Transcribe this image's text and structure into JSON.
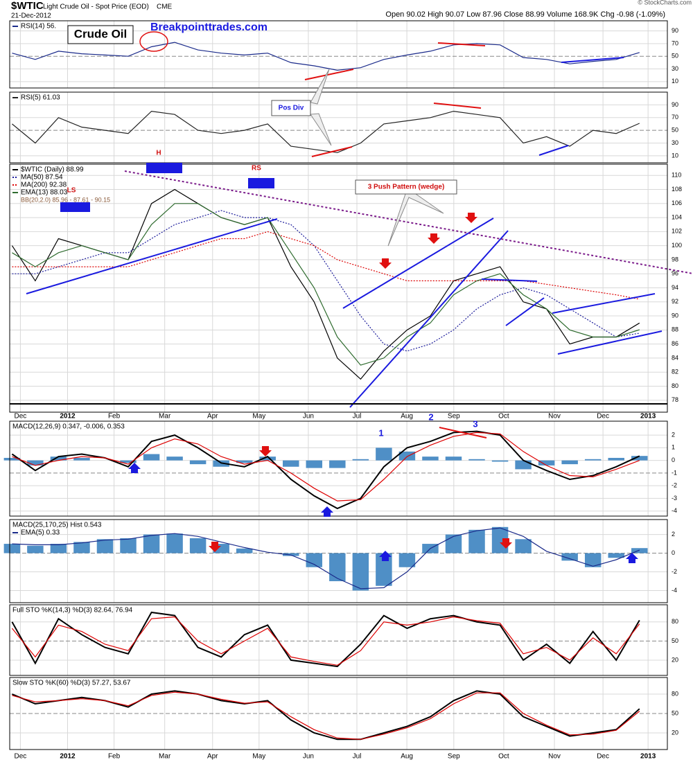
{
  "chart_data": {
    "type": "financial",
    "title": "$WTIC",
    "subtitle": "Light Crude Oil - Spot Price (EOD)",
    "exchange": "CME",
    "date": "21-Dec-2012",
    "quote": "Open 90.02 High 90.07 Low 87.96 Close 88.99 Volume 168.9K Chg -0.98 (-1.09%)",
    "credit": "© StockCharts.com",
    "annotations": {
      "logo": "Crude Oil",
      "site": "Breakpointtrades.com",
      "pos_div": "Pos Div",
      "wedge": "3 Push Pattern (wedge)",
      "h": "H",
      "rs": "RS",
      "ls": "LS",
      "w1": "1",
      "w2": "2",
      "w3": "3"
    },
    "x": [
      0,
      1,
      2,
      3,
      4,
      5,
      6,
      7,
      8,
      9,
      10,
      11,
      12,
      13,
      14,
      15,
      16,
      17,
      18,
      19,
      20,
      21,
      22,
      23,
      24,
      25,
      26,
      27
    ],
    "xlim": [
      -0.1,
      28.2
    ],
    "xticks": [
      {
        "value": 0.36,
        "label": "Dec"
      },
      {
        "value": 2.39,
        "label": "2012"
      },
      {
        "value": 4.39,
        "label": "Feb"
      },
      {
        "value": 6.57,
        "label": "Mar"
      },
      {
        "value": 8.63,
        "label": "Apr"
      },
      {
        "value": 10.63,
        "label": "May"
      },
      {
        "value": 12.75,
        "label": "Jun"
      },
      {
        "value": 14.84,
        "label": "Jul"
      },
      {
        "value": 16.99,
        "label": "Aug"
      },
      {
        "value": 19.01,
        "label": "Sep"
      },
      {
        "value": 21.16,
        "label": "Oct"
      },
      {
        "value": 23.34,
        "label": "Nov"
      },
      {
        "value": 25.43,
        "label": "Dec"
      },
      {
        "value": 27.37,
        "label": "2013"
      }
    ],
    "grid": true,
    "panels": [
      {
        "type": "line",
        "ylim": [
          0,
          106
        ],
        "yticks": [
          10,
          30,
          50,
          70,
          90
        ],
        "series": [
          {
            "name": "RSI(14) 56.",
            "color": "#1a2a8a",
            "values": [
              55,
              45,
              58,
              54,
              52,
              50,
              65,
              72,
              60,
              55,
              52,
              55,
              40,
              35,
              28,
              32,
              45,
              52,
              58,
              68,
              70,
              68,
              48,
              45,
              38,
              42,
              45,
              56
            ]
          }
        ]
      },
      {
        "type": "line",
        "ylim": [
          -1,
          110
        ],
        "yticks": [
          10,
          30,
          50,
          70,
          90
        ],
        "series": [
          {
            "name": "RSI(5) 61.03",
            "color": "#222222",
            "values": [
              60,
              30,
              70,
              55,
              50,
              45,
              80,
              75,
              50,
              45,
              50,
              60,
              25,
              20,
              15,
              30,
              60,
              65,
              70,
              80,
              75,
              70,
              30,
              40,
              25,
              50,
              45,
              61.03
            ]
          }
        ]
      },
      {
        "type": "line",
        "ylim": [
          76.3,
          111.6
        ],
        "yticks": [
          78,
          80,
          82,
          84,
          86,
          88,
          90,
          92,
          94,
          96,
          98,
          100,
          102,
          104,
          106,
          108,
          110
        ],
        "bb_label": "BB(20,2.0) 85.96 - 87.61 - 90.15",
        "series": [
          {
            "name": "$WTIC (Daily) 88.99",
            "color": "#000000",
            "values": [
              100,
              95,
              101,
              100,
              99,
              98,
              106,
              108,
              106,
              104,
              103,
              104,
              97,
              92,
              84,
              81,
              85,
              88,
              90,
              95,
              96,
              97,
              92,
              91,
              86,
              87,
              87,
              88.99
            ]
          },
          {
            "name": "MA(50) 87.54",
            "color": "#1a1a9a",
            "dash": true,
            "values": [
              96,
              96,
              97,
              98,
              99,
              99,
              101,
              103,
              104,
              105,
              104,
              104,
              103,
              100,
              95,
              90,
              86,
              85,
              86,
              88,
              91,
              93,
              94,
              93,
              91,
              89,
              87,
              87.54
            ]
          },
          {
            "name": "MA(200) 92.38",
            "color": "#dd0000",
            "dash": true,
            "values": [
              97,
              97,
              97,
              97,
              97,
              97,
              98,
              99,
              100,
              101,
              101,
              102,
              101,
              100,
              98,
              97,
              96,
              95,
              95,
              95,
              95,
              95,
              95,
              94.5,
              94,
              93.5,
              93,
              92.38
            ]
          },
          {
            "name": "EMA(13) 88.03",
            "color": "#2e6b2e",
            "values": [
              99,
              97,
              99,
              100,
              99,
              98,
              103,
              106,
              106,
              104,
              103,
              104,
              99,
              94,
              87,
              83,
              84,
              87,
              89,
              93,
              95,
              96,
              93,
              91,
              88,
              87,
              87,
              88.03
            ]
          }
        ]
      },
      {
        "type": "line",
        "ylim": [
          -4.4,
          3.1
        ],
        "yticks": [
          -4,
          -3,
          -2,
          -1,
          0,
          1,
          2
        ],
        "label": "MACD(12,26,9) 0.347, -0.006, 0.353",
        "series": [
          {
            "type": "bar",
            "color": "#4f8fc6",
            "values": [
              0.2,
              -0.4,
              0.3,
              0.2,
              0,
              -0.2,
              0.5,
              0.3,
              -0.3,
              -0.5,
              -0.2,
              0.3,
              -0.5,
              -0.6,
              -0.6,
              0.1,
              1,
              0.7,
              0.3,
              0.3,
              0.1,
              -0.1,
              -0.7,
              -0.4,
              -0.3,
              0.1,
              0.2,
              0.353
            ]
          },
          {
            "color": "#000000",
            "width": 2,
            "values": [
              0.5,
              -0.8,
              0.3,
              0.5,
              0.2,
              -0.5,
              1.5,
              2,
              1,
              -0.2,
              -0.5,
              0.3,
              -1.5,
              -2.8,
              -3.8,
              -3,
              -0.5,
              1,
              1.5,
              2.2,
              2.3,
              2,
              0,
              -0.8,
              -1.5,
              -1.2,
              -0.5,
              0.347
            ]
          },
          {
            "color": "#dd0000",
            "values": [
              0.3,
              -0.4,
              0,
              0.3,
              0.2,
              -0.3,
              1,
              1.7,
              1.3,
              0.3,
              -0.3,
              0,
              -1,
              -2.2,
              -3.2,
              -3.1,
              -1.5,
              0.3,
              1.2,
              1.9,
              2.2,
              2.1,
              0.7,
              -0.4,
              -1.2,
              -1.3,
              -0.7,
              -0.006
            ]
          }
        ]
      },
      {
        "type": "line",
        "ylim": [
          -5.3,
          3.6
        ],
        "yticks": [
          -4,
          -2,
          0,
          2
        ],
        "label": "MACD(25,170,25) Hist 0.543",
        "series": [
          {
            "type": "bar",
            "color": "#4f8fc6",
            "values": [
              1,
              0.8,
              1,
              1.2,
              1.5,
              1.6,
              2,
              2.1,
              1.6,
              1,
              0.5,
              0,
              -0.3,
              -1.5,
              -3,
              -4,
              -3.5,
              -1.5,
              1,
              2,
              2.5,
              2.8,
              1.5,
              0,
              -0.8,
              -1.5,
              -0.5,
              0.543
            ]
          },
          {
            "name": "EMA(5) 0.33",
            "color": "#1a2a8a",
            "values": [
              1,
              0.9,
              0.9,
              1.1,
              1.4,
              1.5,
              1.9,
              2.1,
              1.8,
              1.2,
              0.6,
              0.1,
              -0.2,
              -1.2,
              -2.7,
              -3.8,
              -3.7,
              -2,
              0.5,
              1.8,
              2.4,
              2.7,
              1.8,
              0.2,
              -0.6,
              -1.4,
              -0.7,
              0.33
            ]
          }
        ]
      },
      {
        "type": "line",
        "ylim": [
          -4,
          107
        ],
        "yticks": [
          20,
          50,
          80
        ],
        "label": "Full STO %K(14,3) %D(3) 82.64, 76.94",
        "series": [
          {
            "color": "#000000",
            "width": 2,
            "values": [
              80,
              15,
              85,
              60,
              40,
              30,
              95,
              90,
              40,
              25,
              60,
              75,
              20,
              15,
              10,
              45,
              90,
              70,
              85,
              90,
              80,
              75,
              20,
              45,
              15,
              65,
              20,
              82.64
            ]
          },
          {
            "color": "#dd0000",
            "values": [
              70,
              25,
              75,
              65,
              45,
              35,
              85,
              88,
              50,
              30,
              50,
              70,
              25,
              18,
              12,
              35,
              80,
              75,
              80,
              88,
              82,
              78,
              30,
              40,
              20,
              55,
              30,
              76.94
            ]
          }
        ]
      },
      {
        "type": "line",
        "ylim": [
          -5.8,
          105.8
        ],
        "yticks": [
          20,
          50,
          80
        ],
        "label": "Slow STO %K(60) %D(3) 57.27, 53.67",
        "series": [
          {
            "color": "#000000",
            "width": 2,
            "values": [
              80,
              65,
              70,
              75,
              70,
              60,
              80,
              85,
              80,
              70,
              65,
              70,
              40,
              20,
              10,
              10,
              20,
              30,
              45,
              70,
              85,
              80,
              45,
              30,
              15,
              20,
              25,
              57.27
            ]
          },
          {
            "color": "#dd0000",
            "values": [
              78,
              68,
              70,
              73,
              70,
              62,
              78,
              83,
              80,
              72,
              66,
              68,
              45,
              25,
              12,
              10,
              18,
              28,
              42,
              65,
              82,
              82,
              50,
              32,
              17,
              18,
              24,
              53.67
            ]
          }
        ]
      }
    ]
  }
}
